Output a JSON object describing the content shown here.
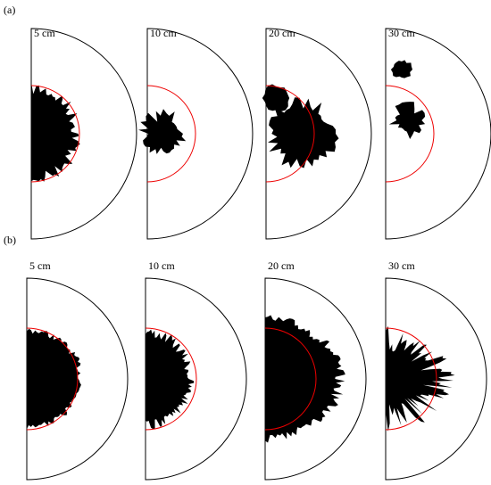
{
  "panels": [
    {
      "label": "(a)",
      "items": [
        {
          "label": "5 cm"
        },
        {
          "label": "10 cm"
        },
        {
          "label": "20 cm"
        },
        {
          "label": "30 cm"
        }
      ]
    },
    {
      "label": "(b)",
      "items": [
        {
          "label": "5 cm"
        },
        {
          "label": "10 cm"
        },
        {
          "label": "20 cm"
        },
        {
          "label": "30 cm"
        }
      ]
    }
  ]
}
